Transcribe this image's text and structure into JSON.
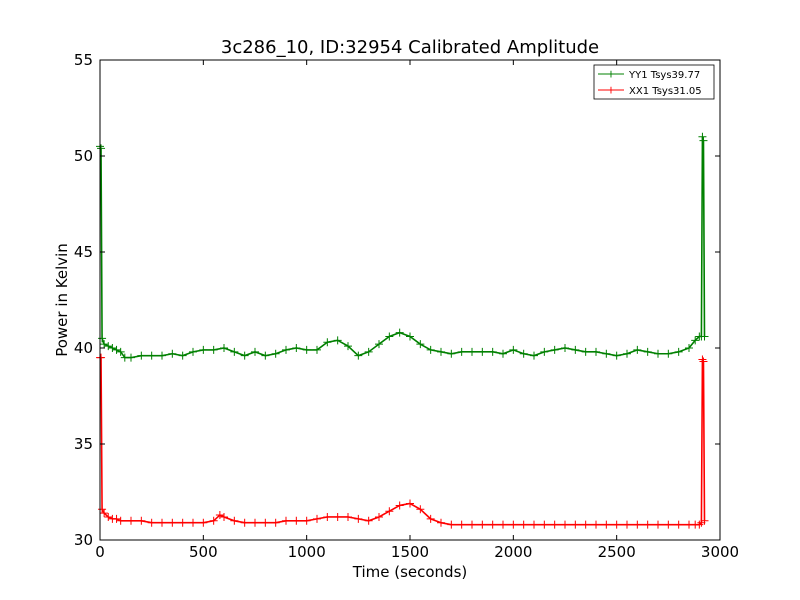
{
  "chart_data": {
    "type": "line",
    "title": "3c286_10, ID:32954 Calibrated Amplitude",
    "xlabel": "Time (seconds)",
    "ylabel": "Power in Kelvin",
    "xlim": [
      0,
      3000
    ],
    "ylim": [
      30,
      55
    ],
    "x_ticks": [
      "0",
      "500",
      "1000",
      "1500",
      "2000",
      "2500",
      "3000"
    ],
    "y_ticks": [
      "30",
      "35",
      "40",
      "45",
      "50",
      "55"
    ],
    "grid": false,
    "legend_position": "top-right",
    "colors": {
      "yy": "#008000",
      "xx": "#ff0000"
    },
    "series": [
      {
        "name": "YY1 Tsys39.77",
        "color": "#008000",
        "x": [
          0,
          5,
          10,
          20,
          40,
          60,
          80,
          100,
          120,
          150,
          200,
          250,
          300,
          350,
          400,
          450,
          500,
          550,
          600,
          650,
          700,
          750,
          800,
          850,
          900,
          950,
          1000,
          1050,
          1100,
          1150,
          1200,
          1250,
          1300,
          1350,
          1400,
          1450,
          1500,
          1550,
          1600,
          1650,
          1700,
          1750,
          1800,
          1850,
          1900,
          1950,
          2000,
          2050,
          2100,
          2150,
          2200,
          2250,
          2300,
          2350,
          2400,
          2450,
          2500,
          2550,
          2600,
          2650,
          2700,
          2750,
          2800,
          2850,
          2880,
          2900,
          2910,
          2915,
          2920,
          2925
        ],
        "values": [
          50.5,
          50.4,
          40.5,
          40.2,
          40.1,
          40.0,
          39.9,
          39.8,
          39.5,
          39.5,
          39.6,
          39.6,
          39.6,
          39.7,
          39.6,
          39.8,
          39.9,
          39.9,
          40.0,
          39.8,
          39.6,
          39.8,
          39.6,
          39.7,
          39.9,
          40.0,
          39.9,
          39.9,
          40.3,
          40.4,
          40.1,
          39.6,
          39.8,
          40.2,
          40.6,
          40.8,
          40.6,
          40.2,
          39.9,
          39.8,
          39.7,
          39.8,
          39.8,
          39.8,
          39.8,
          39.7,
          39.9,
          39.7,
          39.6,
          39.8,
          39.9,
          40.0,
          39.9,
          39.8,
          39.8,
          39.7,
          39.6,
          39.7,
          39.9,
          39.8,
          39.7,
          39.7,
          39.8,
          40.0,
          40.4,
          40.6,
          40.6,
          51.0,
          50.8,
          40.6
        ]
      },
      {
        "name": "XX1 Tsys31.05",
        "color": "#ff0000",
        "x": [
          0,
          5,
          10,
          20,
          40,
          60,
          80,
          100,
          150,
          200,
          250,
          300,
          350,
          400,
          450,
          500,
          550,
          580,
          600,
          650,
          700,
          750,
          800,
          850,
          900,
          950,
          1000,
          1050,
          1100,
          1150,
          1200,
          1250,
          1300,
          1350,
          1400,
          1450,
          1500,
          1550,
          1600,
          1650,
          1700,
          1750,
          1800,
          1850,
          1900,
          1950,
          2000,
          2050,
          2100,
          2150,
          2200,
          2250,
          2300,
          2350,
          2400,
          2450,
          2500,
          2550,
          2600,
          2650,
          2700,
          2750,
          2800,
          2850,
          2880,
          2900,
          2910,
          2915,
          2920,
          2925
        ],
        "values": [
          39.5,
          39.5,
          31.6,
          31.4,
          31.2,
          31.1,
          31.1,
          31.0,
          31.0,
          31.0,
          30.9,
          30.9,
          30.9,
          30.9,
          30.9,
          30.9,
          31.0,
          31.3,
          31.2,
          31.0,
          30.9,
          30.9,
          30.9,
          30.9,
          31.0,
          31.0,
          31.0,
          31.1,
          31.2,
          31.2,
          31.2,
          31.1,
          31.0,
          31.2,
          31.5,
          31.8,
          31.9,
          31.6,
          31.1,
          30.9,
          30.8,
          30.8,
          30.8,
          30.8,
          30.8,
          30.8,
          30.8,
          30.8,
          30.8,
          30.8,
          30.8,
          30.8,
          30.8,
          30.8,
          30.8,
          30.8,
          30.8,
          30.8,
          30.8,
          30.8,
          30.8,
          30.8,
          30.8,
          30.8,
          30.8,
          30.8,
          30.9,
          39.4,
          39.3,
          31.0
        ]
      }
    ]
  }
}
